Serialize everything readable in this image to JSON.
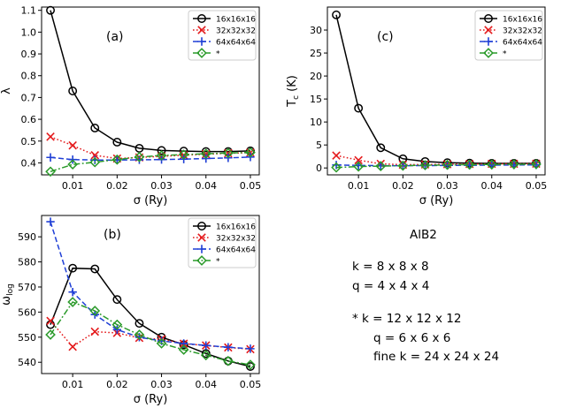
{
  "chart_data": [
    {
      "id": "a",
      "type": "line",
      "panel_label": "(a)",
      "xlabel": "σ (Ry)",
      "ylabel": "λ",
      "xlim": [
        0.003,
        0.052
      ],
      "ylim": [
        0.345,
        1.115
      ],
      "xticks": [
        0.01,
        0.02,
        0.03,
        0.04,
        0.05
      ],
      "xtick_labels": [
        "0.01",
        "0.02",
        "0.03",
        "0.04",
        "0.05"
      ],
      "yticks": [
        0.4,
        0.5,
        0.6,
        0.7,
        0.8,
        0.9,
        1.0,
        1.1
      ],
      "ytick_labels": [
        "0.4",
        "0.5",
        "0.6",
        "0.7",
        "0.8",
        "0.9",
        "1.0",
        "1.1"
      ],
      "legend_position": "top-right",
      "x": [
        0.005,
        0.01,
        0.015,
        0.02,
        0.025,
        0.03,
        0.035,
        0.04,
        0.045,
        0.05
      ],
      "series": [
        {
          "name": "16x16x16",
          "color": "#000000",
          "marker": "circle",
          "dash": "solid",
          "values": [
            1.1,
            0.73,
            0.56,
            0.495,
            0.467,
            0.457,
            0.454,
            0.452,
            0.452,
            0.455
          ]
        },
        {
          "name": "32x32x32",
          "color": "#e41a1c",
          "marker": "x",
          "dash": "dotted",
          "values": [
            0.52,
            0.48,
            0.435,
            0.42,
            0.425,
            0.43,
            0.435,
            0.44,
            0.444,
            0.447
          ]
        },
        {
          "name": "64x64x64",
          "color": "#1f3fd6",
          "marker": "plus",
          "dash": "dashed",
          "values": [
            0.425,
            0.415,
            0.413,
            0.413,
            0.414,
            0.415,
            0.417,
            0.42,
            0.423,
            0.427
          ]
        },
        {
          "name": "*",
          "color": "#2a9a2a",
          "marker": "diamond",
          "dash": "dashdot",
          "values": [
            0.36,
            0.393,
            0.403,
            0.415,
            0.427,
            0.434,
            0.438,
            0.442,
            0.445,
            0.448
          ]
        }
      ]
    },
    {
      "id": "c",
      "type": "line",
      "panel_label": "(c)",
      "xlabel": "σ (Ry)",
      "ylabel": "T",
      "ylabel_sub": "c",
      "ylabel_rest": " (K)",
      "xlim": [
        0.003,
        0.052
      ],
      "ylim": [
        -1.5,
        35.0
      ],
      "xticks": [
        0.01,
        0.02,
        0.03,
        0.04,
        0.05
      ],
      "xtick_labels": [
        "0.01",
        "0.02",
        "0.03",
        "0.04",
        "0.05"
      ],
      "yticks": [
        0,
        5,
        10,
        15,
        20,
        25,
        30
      ],
      "ytick_labels": [
        "0",
        "5",
        "10",
        "15",
        "20",
        "25",
        "30"
      ],
      "legend_position": "top-right",
      "x": [
        0.005,
        0.01,
        0.015,
        0.02,
        0.025,
        0.03,
        0.035,
        0.04,
        0.045,
        0.05
      ],
      "series": [
        {
          "name": "16x16x16",
          "color": "#000000",
          "marker": "circle",
          "dash": "solid",
          "values": [
            33.3,
            13.0,
            4.4,
            2.0,
            1.4,
            1.15,
            1.05,
            1.0,
            1.0,
            1.0
          ]
        },
        {
          "name": "32x32x32",
          "color": "#e41a1c",
          "marker": "x",
          "dash": "dotted",
          "values": [
            2.7,
            1.7,
            0.9,
            0.7,
            0.75,
            0.8,
            0.85,
            0.9,
            0.9,
            0.92
          ]
        },
        {
          "name": "64x64x64",
          "color": "#1f3fd6",
          "marker": "plus",
          "dash": "dashed",
          "values": [
            0.65,
            0.55,
            0.5,
            0.5,
            0.52,
            0.55,
            0.6,
            0.62,
            0.65,
            0.68
          ]
        },
        {
          "name": "*",
          "color": "#2a9a2a",
          "marker": "diamond",
          "dash": "dashdot",
          "values": [
            0.1,
            0.3,
            0.4,
            0.5,
            0.6,
            0.68,
            0.72,
            0.76,
            0.8,
            0.82
          ]
        }
      ]
    },
    {
      "id": "b",
      "type": "line",
      "panel_label": "(b)",
      "xlabel": "σ (Ry)",
      "ylabel": "ω",
      "ylabel_sub": "log",
      "ylabel_rest": "",
      "xlim": [
        0.003,
        0.052
      ],
      "ylim": [
        535.5,
        598.5
      ],
      "xticks": [
        0.01,
        0.02,
        0.03,
        0.04,
        0.05
      ],
      "xtick_labels": [
        "0.01",
        "0.02",
        "0.03",
        "0.04",
        "0.05"
      ],
      "yticks": [
        540,
        550,
        560,
        570,
        580,
        590
      ],
      "ytick_labels": [
        "540",
        "550",
        "560",
        "570",
        "580",
        "590"
      ],
      "legend_position": "top-right",
      "x": [
        0.005,
        0.01,
        0.015,
        0.02,
        0.025,
        0.03,
        0.035,
        0.04,
        0.045,
        0.05
      ],
      "series": [
        {
          "name": "16x16x16",
          "color": "#000000",
          "marker": "circle",
          "dash": "solid",
          "values": [
            555,
            577.5,
            577.2,
            565,
            555.5,
            550,
            547,
            543.5,
            540.5,
            538.3
          ]
        },
        {
          "name": "32x32x32",
          "color": "#e41a1c",
          "marker": "x",
          "dash": "dotted",
          "values": [
            556.5,
            546.2,
            552.2,
            551.7,
            549.7,
            549.2,
            547.4,
            546.7,
            545.9,
            545.2
          ]
        },
        {
          "name": "64x64x64",
          "color": "#1f3fd6",
          "marker": "plus",
          "dash": "dashed",
          "values": [
            596,
            568,
            559,
            553,
            550,
            548.5,
            547.5,
            546.7,
            546,
            545.4
          ]
        },
        {
          "name": "*",
          "color": "#2a9a2a",
          "marker": "diamond",
          "dash": "dashdot",
          "values": [
            551,
            564,
            560.5,
            555,
            551,
            547.5,
            545,
            542.8,
            540.5,
            539
          ]
        }
      ]
    }
  ],
  "info": {
    "title": "AlB2",
    "line1": "k = 8 x 8 x 8",
    "line2": "q = 4 x 4 x 4",
    "line3": "* k = 12 x 12 x 12",
    "line4": "q = 6 x 6 x 6",
    "line5": "fine k = 24 x 24 x 24"
  }
}
